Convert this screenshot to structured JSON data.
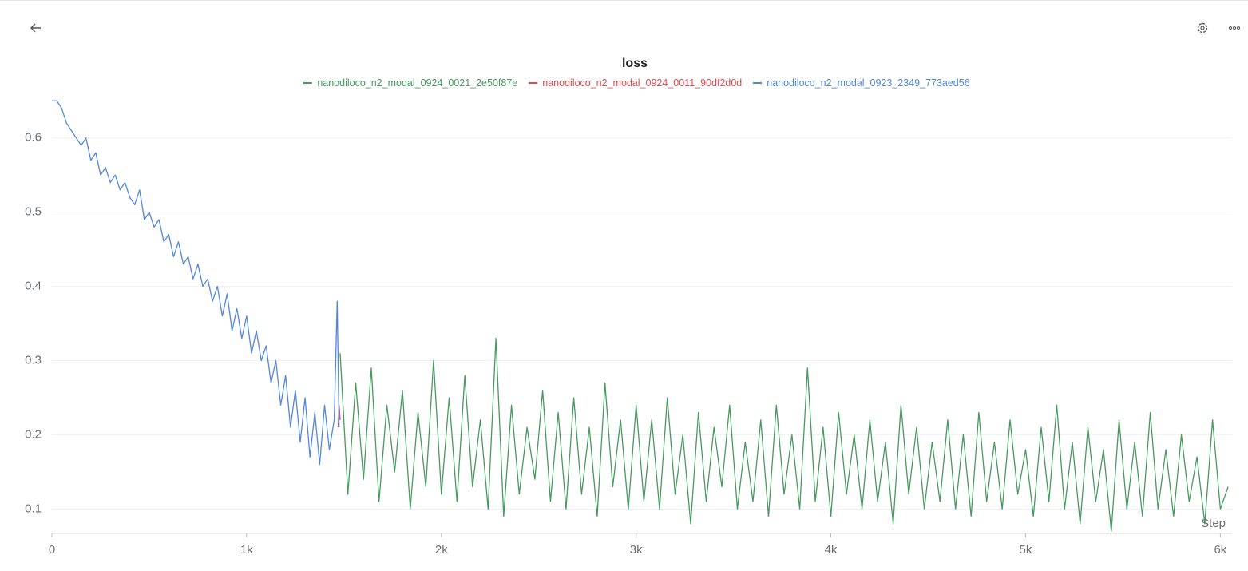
{
  "chart_data": {
    "type": "line",
    "title": "loss",
    "x_label": "Step",
    "xlim": [
      0,
      6060
    ],
    "ylim": [
      0.067,
      0.66
    ],
    "xticks": [
      0,
      {
        "value": 1000,
        "label": "1k"
      },
      {
        "value": 2000,
        "label": "2k"
      },
      {
        "value": 3000,
        "label": "3k"
      },
      {
        "value": 4000,
        "label": "4k"
      },
      {
        "value": 5000,
        "label": "5k"
      },
      {
        "value": 6000,
        "label": "6k"
      }
    ],
    "yticks": [
      0.1,
      0.2,
      0.3,
      0.4,
      0.5,
      0.6
    ],
    "grid": true,
    "series": [
      {
        "name": "nanodiloco_n2_modal_0924_0021_2e50f87e",
        "color": "#479a5f",
        "x": [
          1480,
          1520,
          1560,
          1600,
          1640,
          1680,
          1720,
          1760,
          1800,
          1840,
          1880,
          1920,
          1960,
          2000,
          2040,
          2080,
          2120,
          2160,
          2200,
          2240,
          2280,
          2320,
          2360,
          2400,
          2440,
          2480,
          2520,
          2560,
          2600,
          2640,
          2680,
          2720,
          2760,
          2800,
          2840,
          2880,
          2920,
          2960,
          3000,
          3040,
          3080,
          3120,
          3160,
          3200,
          3240,
          3280,
          3320,
          3360,
          3400,
          3440,
          3480,
          3520,
          3560,
          3600,
          3640,
          3680,
          3720,
          3760,
          3800,
          3840,
          3880,
          3920,
          3960,
          4000,
          4040,
          4080,
          4120,
          4160,
          4200,
          4240,
          4280,
          4320,
          4360,
          4400,
          4440,
          4480,
          4520,
          4560,
          4600,
          4640,
          4680,
          4720,
          4760,
          4800,
          4840,
          4880,
          4920,
          4960,
          5000,
          5040,
          5080,
          5120,
          5160,
          5200,
          5240,
          5280,
          5320,
          5360,
          5400,
          5440,
          5480,
          5520,
          5560,
          5600,
          5640,
          5680,
          5720,
          5760,
          5800,
          5840,
          5880,
          5920,
          5960,
          6000,
          6040
        ],
        "values": [
          0.31,
          0.12,
          0.27,
          0.14,
          0.29,
          0.11,
          0.24,
          0.15,
          0.26,
          0.1,
          0.23,
          0.13,
          0.3,
          0.12,
          0.25,
          0.11,
          0.28,
          0.13,
          0.22,
          0.1,
          0.33,
          0.09,
          0.24,
          0.12,
          0.21,
          0.14,
          0.26,
          0.11,
          0.23,
          0.1,
          0.25,
          0.12,
          0.21,
          0.09,
          0.27,
          0.13,
          0.22,
          0.1,
          0.24,
          0.11,
          0.22,
          0.1,
          0.25,
          0.12,
          0.2,
          0.08,
          0.23,
          0.11,
          0.21,
          0.13,
          0.24,
          0.1,
          0.19,
          0.11,
          0.22,
          0.09,
          0.24,
          0.12,
          0.2,
          0.1,
          0.29,
          0.11,
          0.21,
          0.09,
          0.23,
          0.12,
          0.2,
          0.1,
          0.22,
          0.11,
          0.19,
          0.08,
          0.24,
          0.12,
          0.21,
          0.1,
          0.19,
          0.11,
          0.22,
          0.1,
          0.2,
          0.09,
          0.23,
          0.11,
          0.19,
          0.1,
          0.22,
          0.12,
          0.18,
          0.09,
          0.21,
          0.11,
          0.24,
          0.1,
          0.19,
          0.08,
          0.21,
          0.11,
          0.18,
          0.07,
          0.22,
          0.1,
          0.19,
          0.09,
          0.23,
          0.1,
          0.18,
          0.09,
          0.2,
          0.11,
          0.17,
          0.08,
          0.22,
          0.1,
          0.13
        ]
      },
      {
        "name": "nanodiloco_n2_modal_0924_0011_90df2d0d",
        "color": "#e8484c",
        "x": [
          1470,
          1475,
          1480
        ],
        "values": [
          0.21,
          0.24,
          0.22
        ]
      },
      {
        "name": "nanodiloco_n2_modal_0923_2349_773aed56",
        "color": "#5387dd",
        "x": [
          0,
          25,
          50,
          75,
          100,
          125,
          150,
          175,
          200,
          225,
          250,
          275,
          300,
          325,
          350,
          375,
          400,
          425,
          450,
          475,
          500,
          525,
          550,
          575,
          600,
          625,
          650,
          675,
          700,
          725,
          750,
          775,
          800,
          825,
          850,
          875,
          900,
          925,
          950,
          975,
          1000,
          1025,
          1050,
          1075,
          1100,
          1125,
          1150,
          1175,
          1200,
          1225,
          1250,
          1275,
          1300,
          1325,
          1350,
          1375,
          1400,
          1425,
          1450,
          1465,
          1475
        ],
        "values": [
          0.65,
          0.65,
          0.64,
          0.62,
          0.61,
          0.6,
          0.59,
          0.6,
          0.57,
          0.58,
          0.55,
          0.56,
          0.54,
          0.55,
          0.53,
          0.54,
          0.52,
          0.51,
          0.53,
          0.49,
          0.5,
          0.48,
          0.49,
          0.46,
          0.47,
          0.44,
          0.46,
          0.43,
          0.44,
          0.41,
          0.43,
          0.4,
          0.41,
          0.38,
          0.4,
          0.36,
          0.39,
          0.34,
          0.37,
          0.33,
          0.36,
          0.31,
          0.34,
          0.3,
          0.32,
          0.27,
          0.3,
          0.24,
          0.28,
          0.21,
          0.26,
          0.19,
          0.25,
          0.17,
          0.23,
          0.16,
          0.24,
          0.18,
          0.22,
          0.38,
          0.21
        ]
      }
    ]
  }
}
